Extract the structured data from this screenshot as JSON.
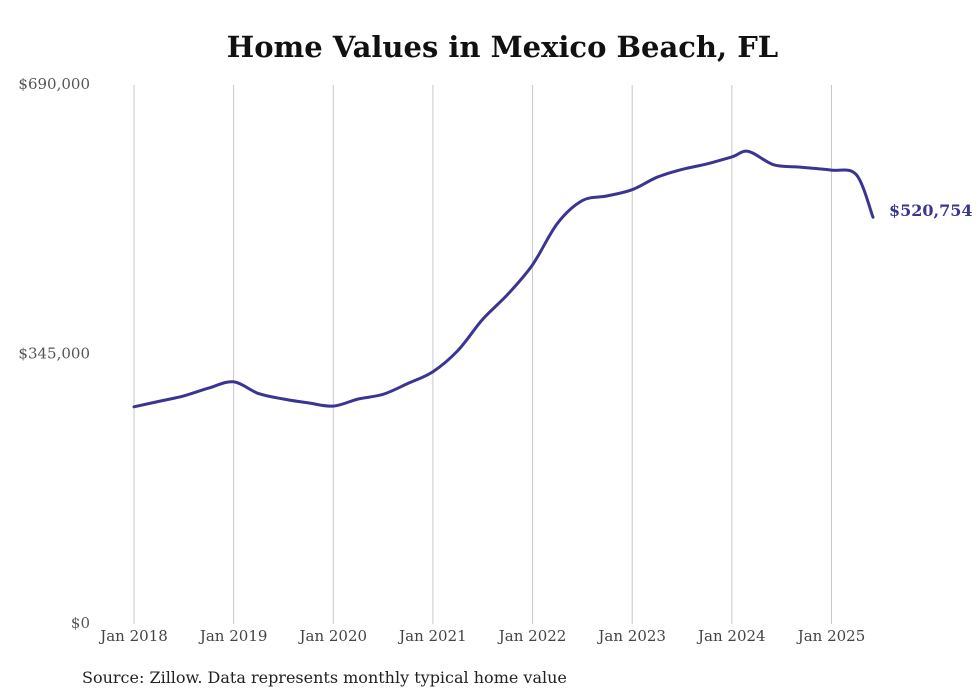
{
  "chart_data": {
    "type": "line",
    "title": "Home Values in Mexico Beach, FL",
    "xlabel": "",
    "ylabel": "",
    "ylim": [
      0,
      690000
    ],
    "yticks": [
      0,
      345000,
      690000
    ],
    "ytick_labels": [
      "$0",
      "$345,000",
      "$690,000"
    ],
    "xticks": [
      "2018-01",
      "2019-01",
      "2020-01",
      "2021-01",
      "2022-01",
      "2023-01",
      "2024-01",
      "2025-01"
    ],
    "xtick_labels": [
      "Jan 2018",
      "Jan 2019",
      "Jan 2020",
      "Jan 2021",
      "Jan 2022",
      "Jan 2023",
      "Jan 2024",
      "Jan 2025"
    ],
    "grid": "vertical",
    "legend": "none",
    "end_label": "$520,754",
    "colors": {
      "line": "#3b3592",
      "grid": "#c8c8c8"
    },
    "series": [
      {
        "x": [
          "2018-01",
          "2018-04",
          "2018-07",
          "2018-10",
          "2019-01",
          "2019-04",
          "2019-07",
          "2019-10",
          "2020-01",
          "2020-04",
          "2020-07",
          "2020-10",
          "2021-01",
          "2021-04",
          "2021-07",
          "2021-10",
          "2022-01",
          "2022-04",
          "2022-07",
          "2022-10",
          "2023-01",
          "2023-04",
          "2023-07",
          "2023-10",
          "2024-01",
          "2024-03",
          "2024-06",
          "2024-09",
          "2025-01",
          "2025-04",
          "2025-06"
        ],
        "values": [
          278000,
          285000,
          292000,
          302000,
          310000,
          295000,
          288000,
          283000,
          279000,
          288000,
          294000,
          308000,
          323000,
          350000,
          390000,
          422000,
          460000,
          513000,
          542000,
          548000,
          556000,
          572000,
          582000,
          589000,
          598000,
          605000,
          588000,
          585000,
          581000,
          575000,
          520754
        ]
      }
    ]
  },
  "source_note": "Source: Zillow. Data represents monthly typical home value"
}
